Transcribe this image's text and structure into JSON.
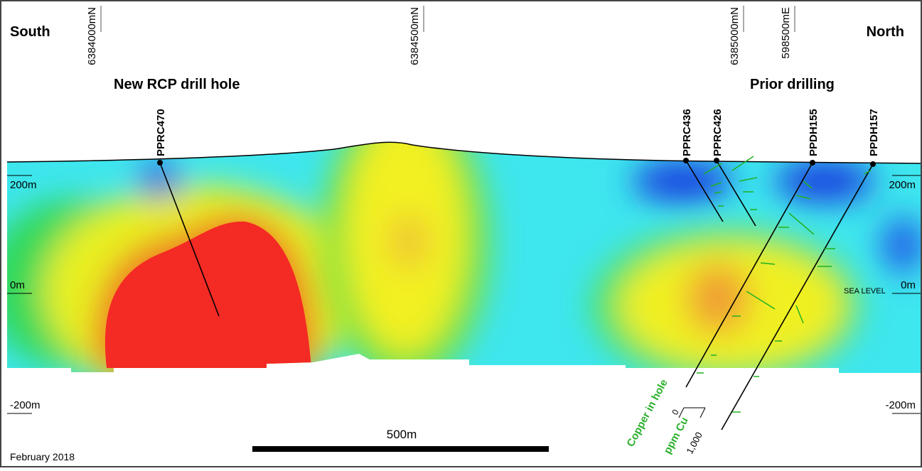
{
  "header": {
    "left": "South",
    "right": "North"
  },
  "grid_labels": [
    "6384000mN",
    "6384500mN",
    "6385000mN",
    "598500mE"
  ],
  "group_labels": {
    "new": "New RCP drill hole",
    "prior": "Prior drilling"
  },
  "holes": [
    "PPRC470",
    "PPRC436",
    "PPRC426",
    "PPDH155",
    "PPDH157"
  ],
  "elevations": {
    "left": [
      "200m",
      "0m",
      "-200m"
    ],
    "right": [
      "200m",
      "0m",
      "-200m"
    ],
    "sea_level": "SEA LEVEL"
  },
  "scale": {
    "label": "500m"
  },
  "legend": {
    "title": "Copper in hole",
    "unit": "ppm Cu",
    "min": "0",
    "max": "1,000"
  },
  "footer": {
    "date": "February 2018"
  }
}
